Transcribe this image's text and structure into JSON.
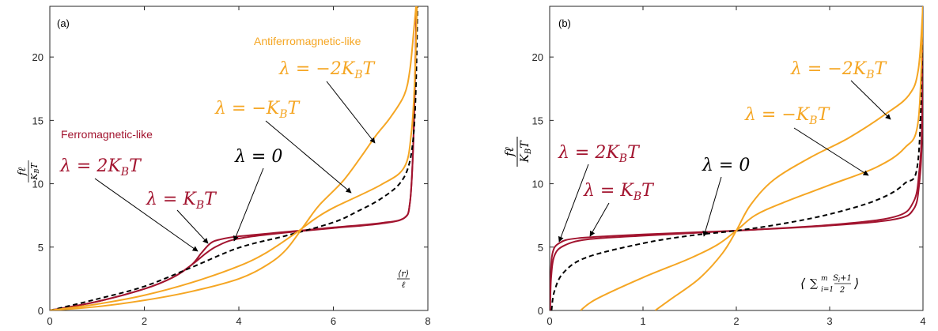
{
  "colors": {
    "ferro": "#a2142f",
    "antiferro": "#f5a623",
    "zero": "#000000",
    "axis": "#262626"
  },
  "chart_data": [
    {
      "type": "line",
      "panel_label": "(a)",
      "xlabel": "⟨r⟩/ℓ",
      "ylabel": "fℓ/K_BT",
      "xlim": [
        0,
        8
      ],
      "ylim": [
        0,
        24
      ],
      "xticks": [
        0,
        2,
        4,
        6,
        8
      ],
      "yticks": [
        0,
        5,
        10,
        15,
        20
      ],
      "grid": false,
      "legend": "none",
      "series": [
        {
          "name": "λ = 2K_BT",
          "group": "ferro",
          "points": [
            [
              0,
              0
            ],
            [
              1,
              0.7
            ],
            [
              2,
              1.7
            ],
            [
              2.6,
              2.6
            ],
            [
              3.0,
              3.6
            ],
            [
              3.2,
              4.5
            ],
            [
              3.4,
              5.3
            ],
            [
              3.6,
              5.6
            ],
            [
              4,
              5.85
            ],
            [
              5,
              6.2
            ],
            [
              6,
              6.55
            ],
            [
              7,
              6.9
            ],
            [
              7.5,
              7.3
            ],
            [
              7.62,
              8.5
            ],
            [
              7.68,
              12
            ],
            [
              7.72,
              17
            ],
            [
              7.76,
              24
            ]
          ]
        },
        {
          "name": "λ = K_BT",
          "group": "ferro",
          "points": [
            [
              0,
              0
            ],
            [
              1,
              0.7
            ],
            [
              2,
              1.7
            ],
            [
              2.6,
              2.6
            ],
            [
              3.0,
              3.6
            ],
            [
              3.3,
              4.5
            ],
            [
              3.5,
              5.0
            ],
            [
              3.8,
              5.5
            ],
            [
              4.2,
              5.8
            ],
            [
              5,
              6.15
            ],
            [
              6,
              6.5
            ],
            [
              7,
              6.85
            ],
            [
              7.5,
              7.3
            ],
            [
              7.62,
              8.5
            ],
            [
              7.68,
              12
            ],
            [
              7.72,
              17
            ],
            [
              7.76,
              24
            ]
          ]
        },
        {
          "name": "λ = 0",
          "group": "zero",
          "points": [
            [
              0,
              0
            ],
            [
              1,
              0.9
            ],
            [
              2,
              1.9
            ],
            [
              3,
              3.4
            ],
            [
              4,
              4.95
            ],
            [
              5,
              5.9
            ],
            [
              6,
              6.95
            ],
            [
              6.5,
              7.8
            ],
            [
              7,
              8.8
            ],
            [
              7.4,
              10
            ],
            [
              7.6,
              11.5
            ],
            [
              7.7,
              14
            ],
            [
              7.75,
              18
            ],
            [
              7.78,
              24
            ]
          ]
        },
        {
          "name": "λ = −K_BT",
          "group": "antiferro",
          "points": [
            [
              0,
              0
            ],
            [
              1,
              0.5
            ],
            [
              2,
              1.2
            ],
            [
              3,
              2.2
            ],
            [
              4,
              3.5
            ],
            [
              4.6,
              4.6
            ],
            [
              5.2,
              6.1
            ],
            [
              5.6,
              7.2
            ],
            [
              6,
              8.1
            ],
            [
              7,
              9.9
            ],
            [
              7.5,
              11.3
            ],
            [
              7.65,
              14
            ],
            [
              7.72,
              18
            ],
            [
              7.77,
              24
            ]
          ]
        },
        {
          "name": "λ = −2K_BT",
          "group": "antiferro",
          "points": [
            [
              0,
              0
            ],
            [
              1,
              0.3
            ],
            [
              2,
              0.8
            ],
            [
              3,
              1.5
            ],
            [
              4,
              2.5
            ],
            [
              4.6,
              3.6
            ],
            [
              5.0,
              4.8
            ],
            [
              5.4,
              6.8
            ],
            [
              5.7,
              8.3
            ],
            [
              6.2,
              10.2
            ],
            [
              6.6,
              12.2
            ],
            [
              6.9,
              13.8
            ],
            [
              7.2,
              15.2
            ],
            [
              7.5,
              17.0
            ],
            [
              7.62,
              19
            ],
            [
              7.7,
              22
            ],
            [
              7.75,
              24
            ]
          ]
        }
      ]
    },
    {
      "type": "line",
      "panel_label": "(b)",
      "xlabel": "⟨Σ_{i=1}^{m} (S_i+1)/2⟩",
      "ylabel": "fℓ/K_BT",
      "xlim": [
        0,
        4
      ],
      "ylim": [
        0,
        24
      ],
      "xticks": [
        0,
        1,
        2,
        3,
        4
      ],
      "yticks": [
        0,
        5,
        10,
        15,
        20
      ],
      "grid": false,
      "legend": "none",
      "series": [
        {
          "name": "λ = 2K_BT",
          "group": "ferro",
          "points": [
            [
              0.005,
              0
            ],
            [
              0.01,
              2.5
            ],
            [
              0.03,
              4.5
            ],
            [
              0.1,
              5.3
            ],
            [
              0.3,
              5.7
            ],
            [
              1,
              6.0
            ],
            [
              2,
              6.3
            ],
            [
              3,
              6.7
            ],
            [
              3.7,
              7.2
            ],
            [
              3.9,
              8.0
            ],
            [
              3.96,
              10
            ],
            [
              3.99,
              14
            ],
            [
              4.0,
              24
            ]
          ]
        },
        {
          "name": "λ = K_BT",
          "group": "ferro",
          "points": [
            [
              0.005,
              0
            ],
            [
              0.015,
              2.5
            ],
            [
              0.05,
              4.3
            ],
            [
              0.15,
              5.1
            ],
            [
              0.4,
              5.6
            ],
            [
              1,
              5.9
            ],
            [
              2,
              6.3
            ],
            [
              3,
              6.75
            ],
            [
              3.7,
              7.4
            ],
            [
              3.9,
              8.6
            ],
            [
              3.96,
              11
            ],
            [
              3.99,
              15
            ],
            [
              4.0,
              24
            ]
          ]
        },
        {
          "name": "λ = 0",
          "group": "zero",
          "points": [
            [
              0.02,
              0
            ],
            [
              0.05,
              1.5
            ],
            [
              0.15,
              3.0
            ],
            [
              0.4,
              4.2
            ],
            [
              1,
              5.3
            ],
            [
              1.5,
              5.9
            ],
            [
              2,
              6.3
            ],
            [
              2.5,
              6.85
            ],
            [
              3,
              7.6
            ],
            [
              3.5,
              8.7
            ],
            [
              3.8,
              10.0
            ],
            [
              3.95,
              12
            ],
            [
              4.0,
              24
            ]
          ]
        },
        {
          "name": "λ = −K_BT",
          "group": "antiferro",
          "points": [
            [
              0.33,
              0
            ],
            [
              0.5,
              0.9
            ],
            [
              1,
              2.6
            ],
            [
              1.5,
              4.1
            ],
            [
              1.8,
              5.2
            ],
            [
              2,
              6.3
            ],
            [
              2.2,
              7.5
            ],
            [
              2.5,
              8.5
            ],
            [
              3,
              9.9
            ],
            [
              3.5,
              11.3
            ],
            [
              3.8,
              12.8
            ],
            [
              3.95,
              15
            ],
            [
              4.0,
              24
            ]
          ]
        },
        {
          "name": "λ = −2K_BT",
          "group": "antiferro",
          "points": [
            [
              1.13,
              0
            ],
            [
              1.3,
              0.9
            ],
            [
              1.6,
              2.5
            ],
            [
              1.85,
              4.5
            ],
            [
              2,
              6.3
            ],
            [
              2.15,
              8.3
            ],
            [
              2.4,
              10.3
            ],
            [
              2.8,
              12.1
            ],
            [
              3.2,
              13.6
            ],
            [
              3.6,
              15.5
            ],
            [
              3.85,
              17
            ],
            [
              3.95,
              19
            ],
            [
              4.0,
              24
            ]
          ]
        }
      ]
    }
  ],
  "annotations": {
    "a": {
      "ferro_title": "Ferromagnetic-like",
      "antiferro_title": "Antiferromagnetic-like",
      "lam_2": "λ = 2K_BT",
      "lam_1": "λ = K_BT",
      "lam_0": "λ = 0",
      "lam_m1": "λ = −K_BT",
      "lam_m2": "λ = −2K_BT"
    },
    "b": {
      "lam_2": "λ = 2K_BT",
      "lam_1": "λ = K_BT",
      "lam_0": "λ = 0",
      "lam_m1": "λ = −K_BT",
      "lam_m2": "λ = −2K_BT"
    }
  }
}
